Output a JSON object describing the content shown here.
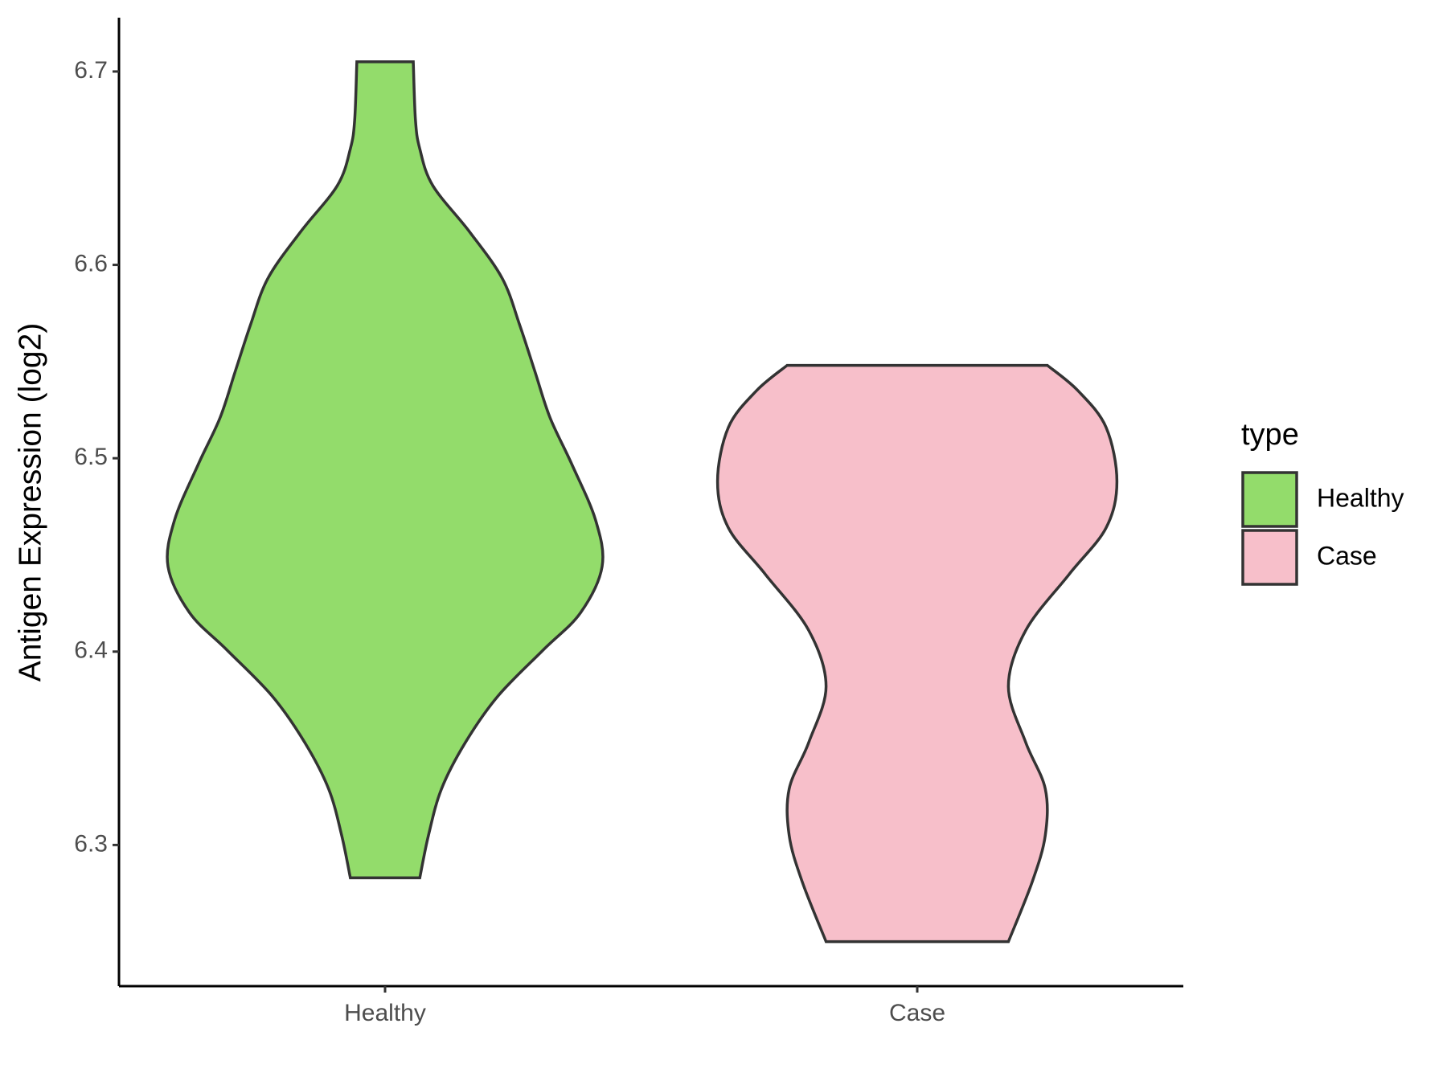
{
  "chart_data": {
    "type": "violin",
    "y_label": "Antigen Expression (log2)",
    "categories": [
      "Healthy",
      "Case"
    ],
    "legend_title": "type",
    "legend_position": "right",
    "series": [
      {
        "name": "Healthy",
        "color": "#93DC6B",
        "y": [
          6.705,
          6.675,
          6.66,
          6.641,
          6.617,
          6.593,
          6.569,
          6.545,
          6.521,
          6.497,
          6.468,
          6.444,
          6.42,
          6.401,
          6.377,
          6.353,
          6.329,
          6.305,
          6.283
        ],
        "density": [
          0.13,
          0.14,
          0.16,
          0.22,
          0.39,
          0.54,
          0.62,
          0.69,
          0.76,
          0.86,
          0.97,
          1,
          0.9,
          0.73,
          0.52,
          0.37,
          0.26,
          0.2,
          0.16
        ]
      },
      {
        "name": "Case",
        "color": "#F7BFCA",
        "y": [
          6.548,
          6.535,
          6.516,
          6.488,
          6.464,
          6.44,
          6.411,
          6.382,
          6.353,
          6.329,
          6.305,
          6.281,
          6.25
        ],
        "density": [
          0.6,
          0.74,
          0.87,
          0.92,
          0.87,
          0.7,
          0.5,
          0.42,
          0.5,
          0.59,
          0.59,
          0.53,
          0.42
        ]
      }
    ],
    "ylim": [
      6.227,
      6.727
    ],
    "yticks": [
      6.3,
      6.4,
      6.5,
      6.6,
      6.7
    ]
  }
}
